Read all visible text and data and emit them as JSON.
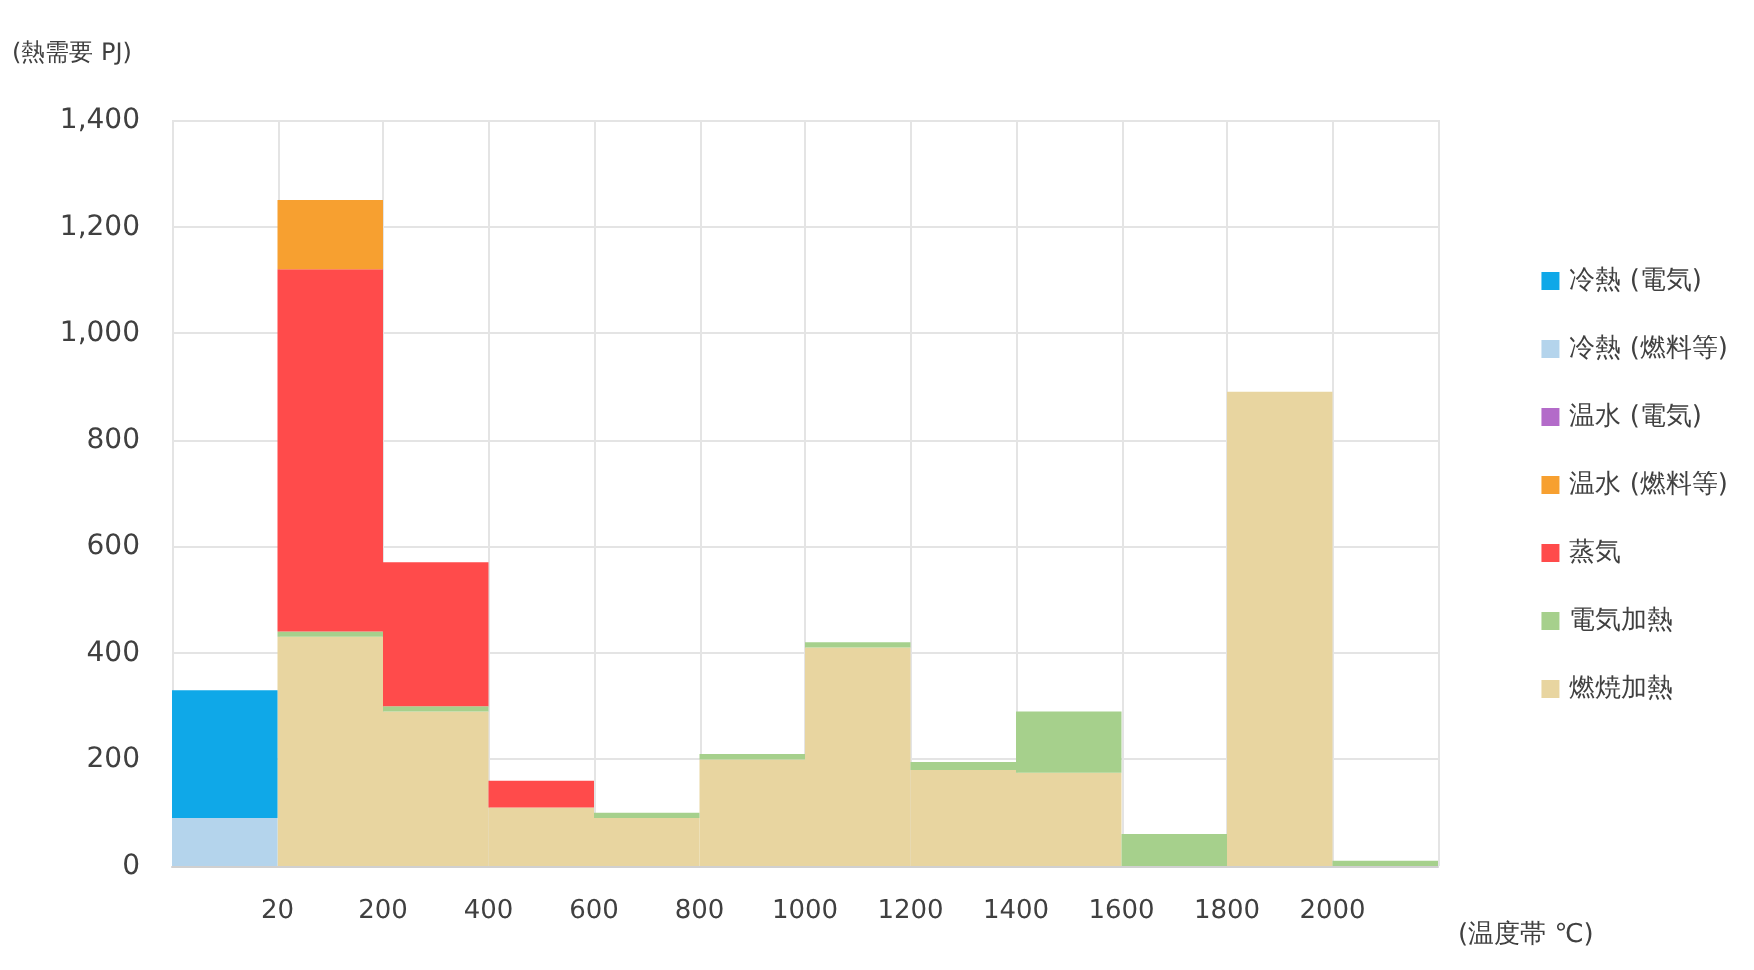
{
  "chart_data": {
    "type": "bar",
    "stacked": true,
    "ylabel": "(熱需要 PJ)",
    "xlabel": "(温度帯 ℃)",
    "categories": [
      null,
      "20",
      "200",
      "400",
      "600",
      "800",
      "1000",
      "1200",
      "1400",
      "1600",
      "1800",
      "2000"
    ],
    "ylim": [
      0,
      1400
    ],
    "yticks": [
      {
        "value": 0,
        "label": "0"
      },
      {
        "value": 200,
        "label": "200"
      },
      {
        "value": 400,
        "label": "400"
      },
      {
        "value": 600,
        "label": "600"
      },
      {
        "value": 800,
        "label": "800"
      },
      {
        "value": 1000,
        "label": "1,000"
      },
      {
        "value": 1200,
        "label": "1,200"
      },
      {
        "value": 1400,
        "label": "1,400"
      }
    ],
    "grid": true,
    "legend": "right",
    "series": [
      {
        "name": "燃焼加熱",
        "color": "#e8d5a0",
        "values": [
          null,
          430,
          290,
          110,
          90,
          200,
          410,
          180,
          175,
          null,
          890,
          null
        ]
      },
      {
        "name": "電気加熱",
        "color": "#a6d08c",
        "values": [
          null,
          10,
          10,
          null,
          10,
          10,
          10,
          15,
          115,
          60,
          null,
          10
        ]
      },
      {
        "name": "蒸気",
        "color": "#ff4b4b",
        "values": [
          null,
          680,
          270,
          50,
          null,
          null,
          null,
          null,
          null,
          null,
          null,
          null
        ]
      },
      {
        "name": "温水 (燃料等)",
        "color": "#f7a030",
        "values": [
          null,
          130,
          null,
          null,
          null,
          null,
          null,
          null,
          null,
          null,
          null,
          null
        ]
      },
      {
        "name": "温水 (電気)",
        "color": "#b36bc9",
        "values": [
          null,
          null,
          null,
          null,
          null,
          null,
          null,
          null,
          null,
          null,
          null,
          null
        ]
      },
      {
        "name": "冷熱 (燃料等)",
        "color": "#b4d4ec",
        "values": [
          90,
          null,
          null,
          null,
          null,
          null,
          null,
          null,
          null,
          null,
          null,
          null
        ]
      },
      {
        "name": "冷熱 (電気)",
        "color": "#0fa8e8",
        "values": [
          240,
          null,
          null,
          null,
          null,
          null,
          null,
          null,
          null,
          null,
          null,
          null
        ]
      }
    ]
  }
}
